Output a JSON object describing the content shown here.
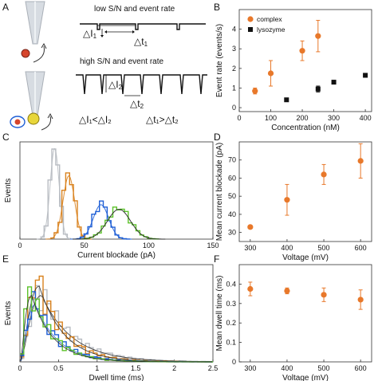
{
  "panel_labels": [
    "A",
    "B",
    "C",
    "D",
    "E",
    "F"
  ],
  "colors": {
    "orange": "#e8782a",
    "black": "#111111",
    "blue": "#1f5fd6",
    "green": "#5cc22a",
    "gray": "#b8bcc2",
    "darkorange": "#d9821e",
    "fit_dark": "#222222",
    "pipette": "#d7dce2"
  },
  "schematic": {
    "top_title": "low S/N and event rate",
    "bottom_title": "high S/N and event rate",
    "delta_i1": "△I",
    "delta_i1_sub": "1",
    "delta_t1": "△t",
    "delta_t1_sub": "1",
    "delta_i2": "△I",
    "delta_i2_sub": "2",
    "delta_t2": "△t",
    "delta_t2_sub": "2",
    "compare_i": "△I₁<△I₂",
    "compare_t": "△t₁>△t₂"
  },
  "chart_data": [
    {
      "panel": "B",
      "type": "scatter",
      "xlabel": "Concentration (nM)",
      "ylabel": "Event rate (events/s)",
      "xlim": [
        0,
        420
      ],
      "ylim": [
        -0.2,
        5.0
      ],
      "xticks": [
        0,
        100,
        200,
        300,
        400
      ],
      "yticks": [
        0,
        1,
        2,
        3,
        4
      ],
      "legend_position": "top-left",
      "series": [
        {
          "name": "complex",
          "marker": "circle",
          "color": "#e8782a",
          "x": [
            50,
            100,
            200,
            250
          ],
          "y": [
            0.85,
            1.75,
            2.9,
            3.65
          ],
          "err": [
            0.15,
            0.65,
            0.5,
            0.8
          ]
        },
        {
          "name": "lysozyme",
          "marker": "square",
          "color": "#111111",
          "x": [
            150,
            250,
            300,
            400
          ],
          "y": [
            0.4,
            0.95,
            1.3,
            1.65
          ],
          "err": [
            0.05,
            0.15,
            0.08,
            0.1
          ]
        }
      ]
    },
    {
      "panel": "C",
      "type": "histogram",
      "xlabel": "Current blockade (pA)",
      "ylabel": "Events",
      "xlim": [
        0,
        150
      ],
      "xticks": [
        0,
        50,
        100,
        150
      ],
      "grid": false,
      "series": [
        {
          "color": "#b8bcc2",
          "center": 27,
          "sigma": 3.5,
          "peak": 1.0
        },
        {
          "color": "#d9821e",
          "center": 38,
          "sigma": 4.5,
          "peak": 0.7
        },
        {
          "color": "#1f5fd6",
          "center": 63,
          "sigma": 6.0,
          "peak": 0.38
        },
        {
          "color": "#5cc22a",
          "center": 77,
          "sigma": 9.0,
          "peak": 0.33
        }
      ]
    },
    {
      "panel": "D",
      "type": "scatter",
      "xlabel": "Voltage (mV)",
      "ylabel": "Mean current blockade (pA)",
      "xlim": [
        270,
        630
      ],
      "ylim": [
        25,
        80
      ],
      "xticks": [
        300,
        400,
        500,
        600
      ],
      "yticks": [
        30,
        40,
        50,
        60,
        70
      ],
      "series": [
        {
          "color": "#e8782a",
          "x": [
            300,
            400,
            500,
            600
          ],
          "y": [
            33,
            48,
            62,
            69.5
          ],
          "err": [
            0.5,
            8.5,
            5.5,
            9.5
          ]
        }
      ]
    },
    {
      "panel": "E",
      "type": "histogram",
      "xlabel": "Dwell time (ms)",
      "ylabel": "Events",
      "xlim": [
        0,
        2.5
      ],
      "xticks": [
        0,
        0.5,
        1,
        1.5,
        2,
        2.5
      ],
      "grid": false,
      "series": [
        {
          "color": "#b8bcc2",
          "peak_x": 0.28,
          "decay": 0.4,
          "height": 0.72
        },
        {
          "color": "#d9821e",
          "peak_x": 0.25,
          "decay": 0.32,
          "height": 0.82
        },
        {
          "color": "#1f5fd6",
          "peak_x": 0.2,
          "decay": 0.3,
          "height": 0.62
        },
        {
          "color": "#5cc22a",
          "peak_x": 0.15,
          "decay": 0.28,
          "height": 0.72
        }
      ]
    },
    {
      "panel": "F",
      "type": "scatter",
      "xlabel": "Voltage (mV)",
      "ylabel": "Mean dwell time (ms)",
      "xlim": [
        270,
        630
      ],
      "ylim": [
        0.0,
        0.5
      ],
      "xticks": [
        300,
        400,
        500,
        600
      ],
      "yticks": [
        0.0,
        0.1,
        0.2,
        0.3,
        0.4
      ],
      "series": [
        {
          "color": "#e8782a",
          "x": [
            300,
            400,
            500,
            600
          ],
          "y": [
            0.375,
            0.365,
            0.345,
            0.32
          ],
          "err": [
            0.035,
            0.015,
            0.035,
            0.05
          ]
        }
      ]
    }
  ]
}
